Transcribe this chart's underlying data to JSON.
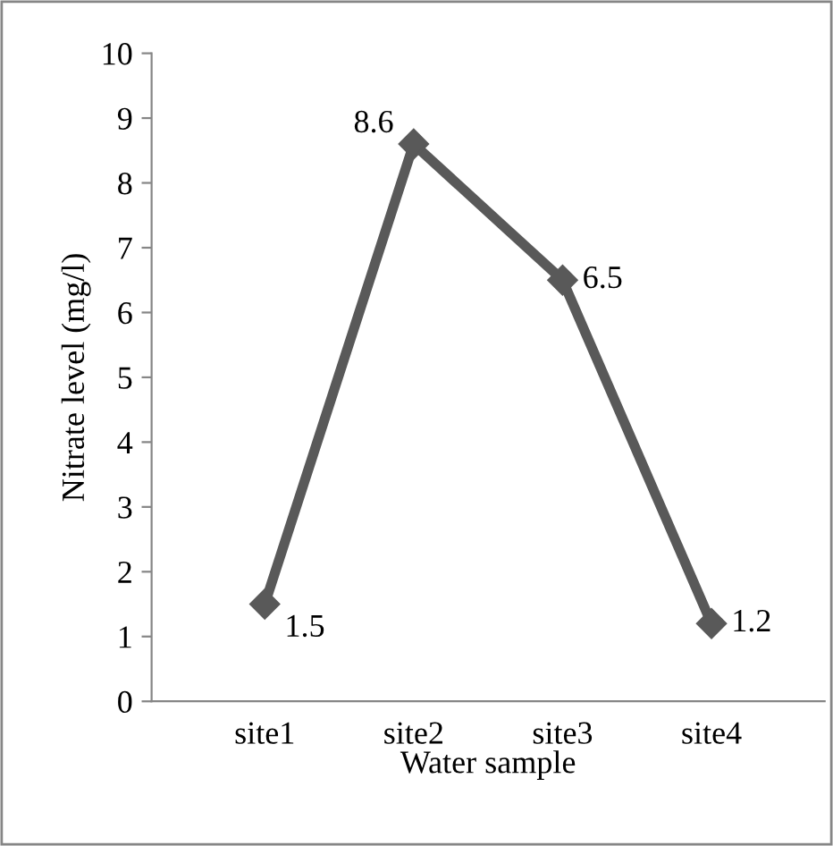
{
  "chart_data": {
    "type": "line",
    "xlabel": "Water sample",
    "ylabel": "Nitrate level (mg/l)",
    "categories": [
      "site1",
      "site2",
      "site3",
      "site4"
    ],
    "series": [
      {
        "color": "#595959",
        "values": [
          1.5,
          8.6,
          6.5,
          1.2
        ]
      }
    ],
    "ylim": [
      0,
      10
    ],
    "yticks": [
      0,
      1,
      2,
      3,
      4,
      5,
      6,
      7,
      8,
      9,
      10
    ],
    "marker": "diamond",
    "line_style": "solid",
    "data_labels": true,
    "grid": false,
    "legend": false
  }
}
